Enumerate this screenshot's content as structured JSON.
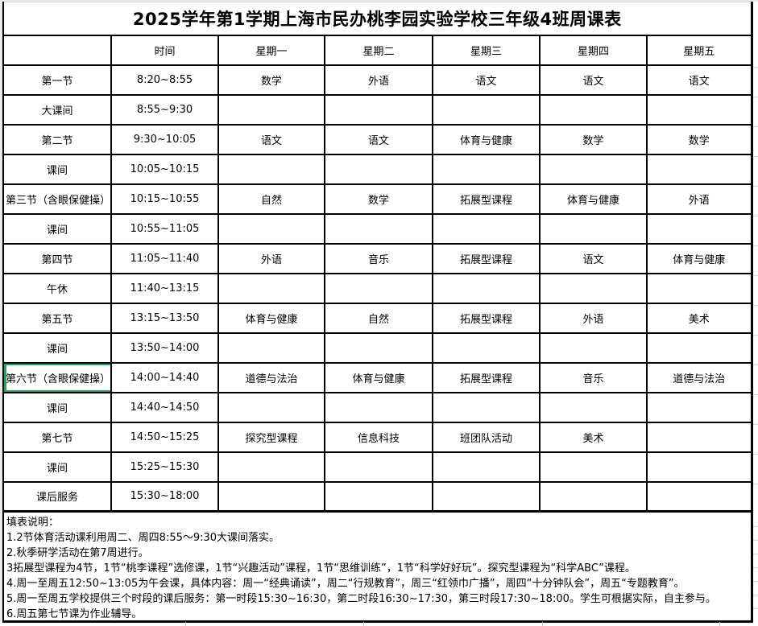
{
  "title": "2025学年第1学期上海市民办桃李园实验学校三年级4班周课表",
  "table": {
    "headers": [
      "",
      "时间",
      "星期一",
      "星期二",
      "星期三",
      "星期四",
      "星期五"
    ],
    "rows": [
      {
        "period": "第一节",
        "time": "8:20~8:55",
        "subjects": [
          "数学",
          "外语",
          "语文",
          "语文",
          "语文"
        ]
      },
      {
        "period": "大课间",
        "time": "8:55~9:30",
        "subjects": [
          "",
          "",
          "",
          "",
          ""
        ]
      },
      {
        "period": "第二节",
        "time": "9:30~10:05",
        "subjects": [
          "语文",
          "语文",
          "体育与健康",
          "数学",
          "数学"
        ]
      },
      {
        "period": "课间",
        "time": "10:05~10:15",
        "subjects": [
          "",
          "",
          "",
          "",
          ""
        ]
      },
      {
        "period": "第三节（含眼保健操）",
        "time": "10:15~10:55",
        "subjects": [
          "自然",
          "数学",
          "拓展型课程",
          "体育与健康",
          "外语"
        ]
      },
      {
        "period": "课间",
        "time": "10:55~11:05",
        "subjects": [
          "",
          "",
          "",
          "",
          ""
        ]
      },
      {
        "period": "第四节",
        "time": "11:05~11:40",
        "subjects": [
          "外语",
          "音乐",
          "拓展型课程",
          "语文",
          "体育与健康"
        ]
      },
      {
        "period": "午休",
        "time": "11:40~13:15",
        "subjects": [
          "",
          "",
          "",
          "",
          ""
        ]
      },
      {
        "period": "第五节",
        "time": "13:15~13:50",
        "subjects": [
          "体育与健康",
          "自然",
          "拓展型课程",
          "外语",
          "美术"
        ]
      },
      {
        "period": "课间",
        "time": "13:50~14:00",
        "subjects": [
          "",
          "",
          "",
          "",
          ""
        ]
      },
      {
        "period": "第六节（含眼保健操）",
        "time": "14:00~14:40",
        "subjects": [
          "道德与法治",
          "体育与健康",
          "拓展型课程",
          "音乐",
          "道德与法治"
        ]
      },
      {
        "period": "课间",
        "time": "14:40~14:50",
        "subjects": [
          "",
          "",
          "",
          "",
          ""
        ]
      },
      {
        "period": "第七节",
        "time": "14:50~15:25",
        "subjects": [
          "探究型课程",
          "信息科技",
          "班团队活动",
          "美术",
          ""
        ]
      },
      {
        "period": "课间",
        "time": "15:25~15:30",
        "subjects": [
          "",
          "",
          "",
          "",
          ""
        ]
      },
      {
        "period": "课后服务",
        "time": "15:30~18:00",
        "subjects": [
          "",
          "",
          "",
          "",
          ""
        ]
      }
    ],
    "selected_cell": {
      "row": 10,
      "col": 0
    }
  },
  "notes": {
    "heading": "填表说明：",
    "items": [
      "1.2节体育活动课利用周二、周四8:55～9:30大课间落实。",
      "2.秋季研学活动在第7周进行。",
      "3拓展型课程为4节，1节“桃李课程”选修课，1节“兴趣活动”课程，1节“思维训练”，1节“科学好好玩”。探究型课程为“科学ABC”课程。",
      "4.周一至周五12:50~13:05为午会课，具体内容：周一“经典诵读”，周二“行规教育”，周三“红领巾广播”，周四“十分钟队会”，周五“专题教育”。",
      "5.周一至周五学校提供三个时段的课后服务：第一时段15:30~16:30，第二时段16:30~17:30，第三时段17:30~18:00。学生可根据实际，自主参与。",
      "6.周五第七节课为作业辅导。"
    ]
  },
  "colors": {
    "selection_green": "#21a366",
    "grid_border": "#000000",
    "sheet_gridline": "#d4d7db",
    "page_margin_gray": "#e9e9e9"
  }
}
